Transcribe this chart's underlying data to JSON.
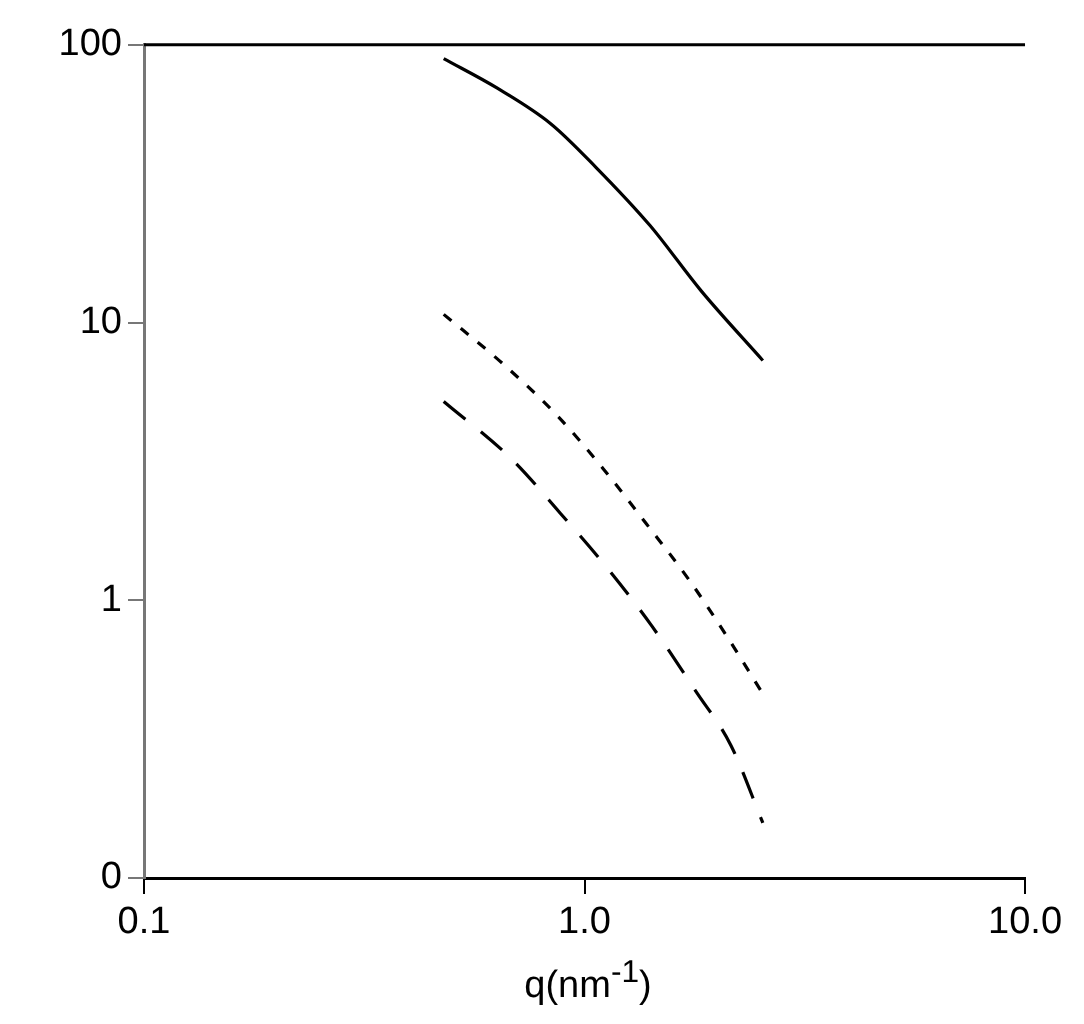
{
  "chart_data": {
    "type": "line",
    "xlabel": "q(nm$^{-1}$)",
    "log": "xy",
    "grid": false,
    "legend": false,
    "marker": "none",
    "xlim": [
      0.1,
      10
    ],
    "xticks": [
      0.1,
      {
        "value": 1,
        "label": "1.0"
      },
      {
        "value": 10,
        "label": "10.0"
      }
    ],
    "ylim": [
      0.1,
      100
    ],
    "yticks": [
      {
        "value": 0.1,
        "label": "0"
      },
      1,
      10,
      100
    ],
    "series": [
      {
        "color": "#000000",
        "line_style": "solid",
        "x": [
          0.479,
          0.634,
          0.838,
          1.06,
          1.41,
          1.84,
          2.54
        ],
        "values": [
          89.2,
          69.8,
          52.0,
          36.3,
          22.3,
          13.0,
          7.3
        ]
      },
      {
        "color": "#000000",
        "line_style": "dotted",
        "x": [
          0.479,
          0.653,
          0.865,
          1.1,
          1.38,
          1.73,
          2.13,
          2.52
        ],
        "values": [
          10.7,
          7.1,
          4.64,
          2.99,
          1.89,
          1.18,
          0.72,
          0.47
        ]
      },
      {
        "color": "#000000",
        "line_style": "dashed",
        "x": [
          0.479,
          0.681,
          0.883,
          1.12,
          1.42,
          1.79,
          2.15,
          2.54
        ],
        "values": [
          5.2,
          3.24,
          2.05,
          1.32,
          0.81,
          0.47,
          0.3,
          0.158
        ]
      }
    ]
  }
}
